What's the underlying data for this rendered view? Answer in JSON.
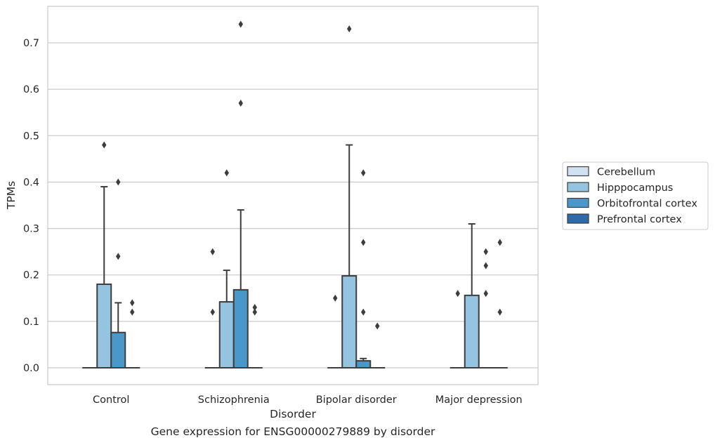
{
  "caption": "Gene expression for ENSG00000279889 by disorder",
  "chart_data": {
    "type": "box",
    "title": "",
    "xlabel": "Disorder",
    "ylabel": "TPMs",
    "ylim": [
      -0.036,
      0.776
    ],
    "yticks": [
      0.0,
      0.1,
      0.2,
      0.3,
      0.4,
      0.5,
      0.6,
      0.7
    ],
    "ytick_labels": [
      "0.0",
      "0.1",
      "0.2",
      "0.3",
      "0.4",
      "0.5",
      "0.6",
      "0.7"
    ],
    "grid": "horizontal",
    "legend_position": "right",
    "categories": [
      "Control",
      "Schizophrenia",
      "Bipolar disorder",
      "Major depression"
    ],
    "colors": {
      "Cerebellum": "#d0e1f2",
      "Hipppocampus": "#94c4df",
      "Orbitofrontal cortex": "#4a98c9",
      "Prefrontal cortex": "#2e6ba8",
      "edge": "#3d3d3d"
    },
    "series": [
      {
        "name": "Cerebellum",
        "boxes": [
          {
            "q1": 0,
            "median": 0,
            "q3": 0,
            "whisker_low": 0,
            "whisker_high": 0,
            "fliers": []
          },
          {
            "q1": 0,
            "median": 0,
            "q3": 0,
            "whisker_low": 0,
            "whisker_high": 0,
            "fliers": [
              0.25,
              0.12
            ]
          },
          {
            "q1": 0,
            "median": 0,
            "q3": 0,
            "whisker_low": 0,
            "whisker_high": 0,
            "fliers": [
              0.15
            ]
          },
          {
            "q1": 0,
            "median": 0,
            "q3": 0,
            "whisker_low": 0,
            "whisker_high": 0,
            "fliers": [
              0.16
            ]
          }
        ]
      },
      {
        "name": "Hipppocampus",
        "boxes": [
          {
            "q1": 0,
            "median": 0,
            "q3": 0.18,
            "whisker_low": 0,
            "whisker_high": 0.39,
            "fliers": [
              0.48
            ]
          },
          {
            "q1": 0,
            "median": 0,
            "q3": 0.142,
            "whisker_low": 0,
            "whisker_high": 0.21,
            "fliers": [
              0.42
            ]
          },
          {
            "q1": 0,
            "median": 0,
            "q3": 0.198,
            "whisker_low": 0,
            "whisker_high": 0.48,
            "fliers": [
              0.73
            ]
          },
          {
            "q1": 0,
            "median": 0,
            "q3": 0.156,
            "whisker_low": 0,
            "whisker_high": 0.31,
            "fliers": []
          }
        ]
      },
      {
        "name": "Orbitofrontal cortex",
        "boxes": [
          {
            "q1": 0,
            "median": 0,
            "q3": 0.076,
            "whisker_low": 0,
            "whisker_high": 0.14,
            "fliers": [
              0.4,
              0.24
            ]
          },
          {
            "q1": 0,
            "median": 0,
            "q3": 0.168,
            "whisker_low": 0,
            "whisker_high": 0.34,
            "fliers": [
              0.74,
              0.57
            ]
          },
          {
            "q1": 0,
            "median": 0,
            "q3": 0.015,
            "whisker_low": 0,
            "whisker_high": 0.02,
            "fliers": [
              0.42,
              0.27,
              0.12
            ]
          },
          {
            "q1": 0,
            "median": 0,
            "q3": 0,
            "whisker_low": 0,
            "whisker_high": 0,
            "fliers": [
              0.25,
              0.22,
              0.16
            ]
          }
        ]
      },
      {
        "name": "Prefrontal cortex",
        "boxes": [
          {
            "q1": 0,
            "median": 0,
            "q3": 0,
            "whisker_low": 0,
            "whisker_high": 0,
            "fliers": [
              0.14,
              0.12
            ]
          },
          {
            "q1": 0,
            "median": 0,
            "q3": 0,
            "whisker_low": 0,
            "whisker_high": 0,
            "fliers": [
              0.13,
              0.12
            ]
          },
          {
            "q1": 0,
            "median": 0,
            "q3": 0,
            "whisker_low": 0,
            "whisker_high": 0,
            "fliers": [
              0.09
            ]
          },
          {
            "q1": 0,
            "median": 0,
            "q3": 0,
            "whisker_low": 0,
            "whisker_high": 0,
            "fliers": [
              0.27,
              0.12
            ]
          }
        ]
      }
    ]
  }
}
